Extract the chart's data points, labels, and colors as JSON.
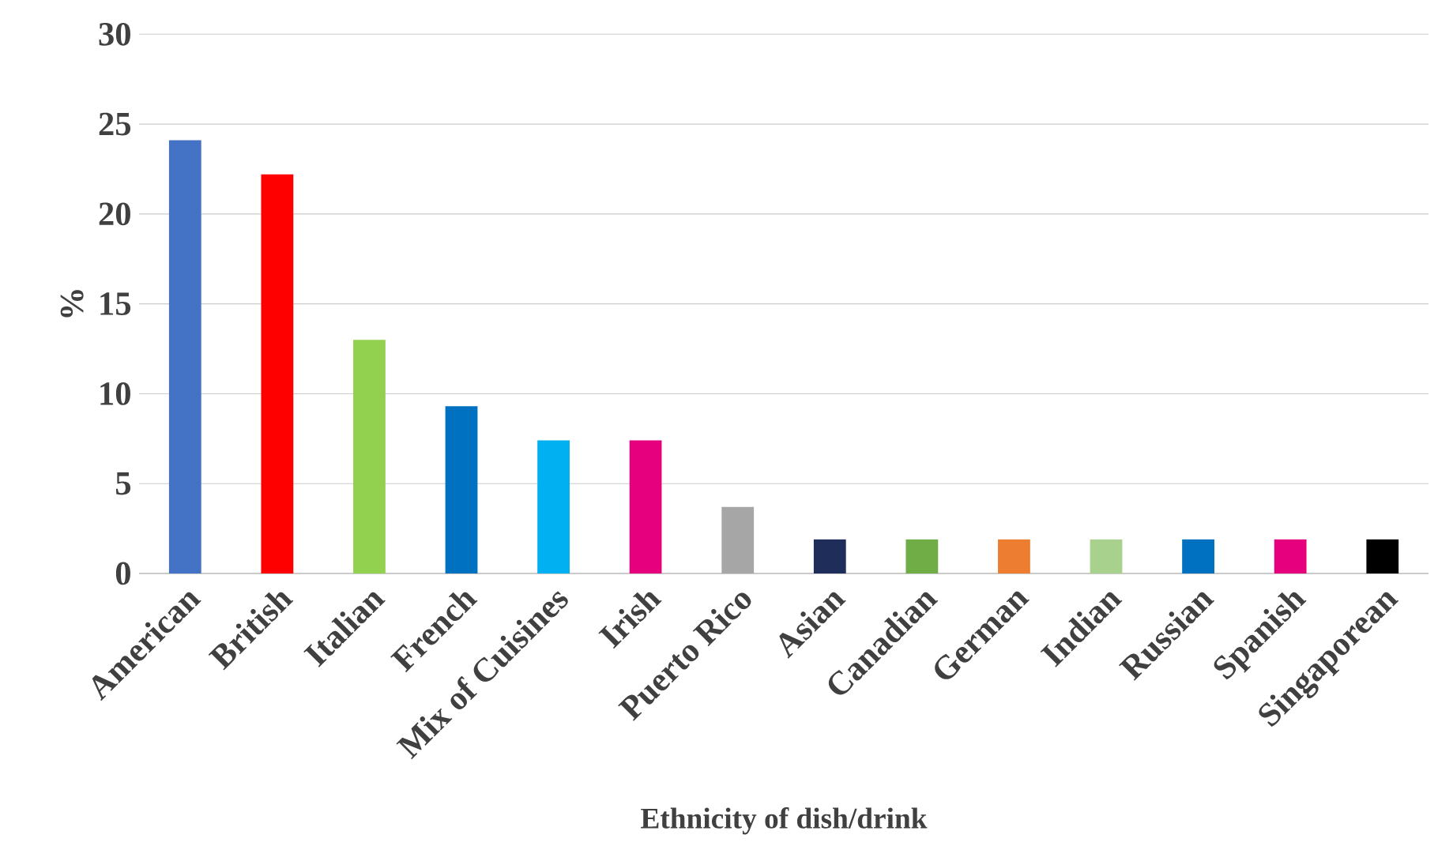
{
  "chart_data": {
    "type": "bar",
    "xlabel": "Ethnicity of dish/drink",
    "ylabel": "%",
    "categories": [
      "American",
      "British",
      "Italian",
      "French",
      "Mix of Cuisines",
      "Irish",
      "Puerto Rico",
      "Asian",
      "Canadian",
      "German",
      "Indian",
      "Russian",
      "Spanish",
      "Singaporean"
    ],
    "values": [
      24.1,
      22.2,
      13.0,
      9.3,
      7.4,
      7.4,
      3.7,
      1.9,
      1.9,
      1.9,
      1.9,
      1.9,
      1.9,
      1.9
    ],
    "colors": [
      "#4472c4",
      "#ff0000",
      "#92d050",
      "#0070c0",
      "#00b0f0",
      "#e6007e",
      "#a6a6a6",
      "#1f2d5a",
      "#70ad47",
      "#ed7d31",
      "#a9d18e",
      "#0070c0",
      "#e6007e",
      "#000000"
    ],
    "ylim": [
      0,
      30
    ],
    "yticks": [
      0,
      5,
      10,
      15,
      20,
      25,
      30
    ],
    "grid": "y"
  }
}
